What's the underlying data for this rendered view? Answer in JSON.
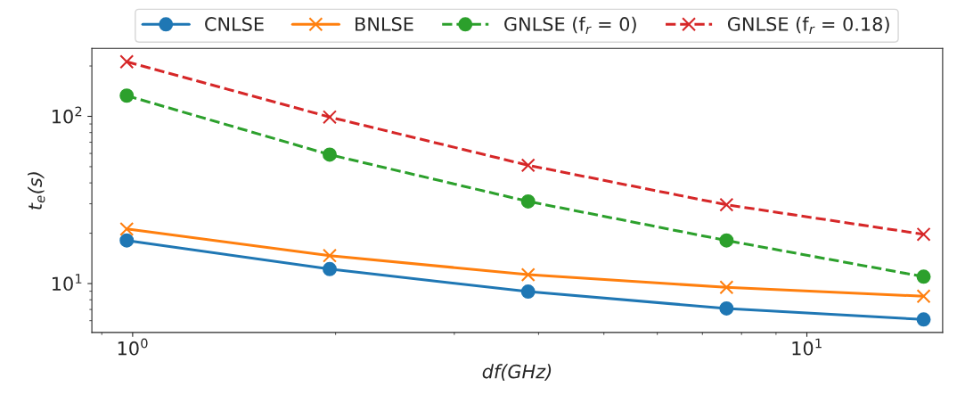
{
  "chart_data": {
    "type": "line",
    "xlabel": "df(GHz)",
    "ylabel": "t$_{e}$(s)",
    "x": [
      0.98,
      1.96,
      3.86,
      7.6,
      14.9
    ],
    "series": [
      {
        "name": "CNLSE",
        "color": "#1f77b4",
        "values": [
          18.1,
          12.2,
          8.95,
          7.1,
          6.1
        ],
        "marker": "circle",
        "line_style": "solid"
      },
      {
        "name": "BNLSE",
        "color": "#ff7f0e",
        "values": [
          21.2,
          14.7,
          11.3,
          9.5,
          8.4
        ],
        "marker": "cross",
        "line_style": "solid"
      },
      {
        "name": "GNLSE (f$_{r}$ = 0)",
        "color": "#2ca02c",
        "values": [
          133,
          59,
          31,
          18.1,
          11.0
        ],
        "marker": "circle",
        "line_style": "dashed"
      },
      {
        "name": "GNLSE (f$_{r}$ = 0.18)",
        "color": "#d62728",
        "values": [
          212,
          99,
          51,
          29.6,
          19.7
        ],
        "marker": "cross",
        "line_style": "dashed"
      }
    ],
    "log": "xy",
    "xlim": [
      0.87,
      15.9
    ],
    "ylim": [
      5.1,
      255
    ],
    "xticks": [
      {
        "value": 1,
        "label": "10$^{0}$"
      },
      {
        "value": 10,
        "label": "10$^{1}$"
      }
    ],
    "yticks": [
      {
        "value": 10,
        "label": "10$^{1}$"
      },
      {
        "value": 100,
        "label": "10$^{2}$"
      }
    ],
    "grid": false,
    "legend": "top"
  }
}
